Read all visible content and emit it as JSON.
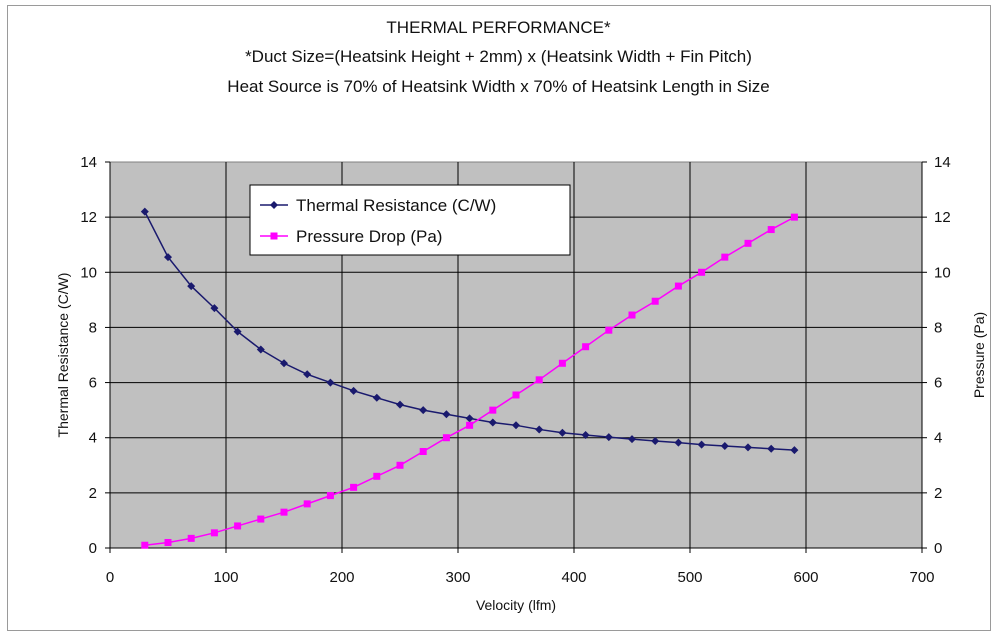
{
  "chart_data": {
    "type": "line",
    "title": "THERMAL PERFORMANCE*",
    "subtitle_lines": [
      "*Duct Size=(Heatsink Height + 2mm) x (Heatsink Width + Fin Pitch)",
      "Heat Source is 70% of Heatsink Width x 70% of Heatsink Length in Size"
    ],
    "xlabel": "Velocity (lfm)",
    "ylabel_left": "Thermal Resistance (C/W)",
    "ylabel_right": "Pressure (Pa)",
    "xlim": [
      0,
      700
    ],
    "ylim_left": [
      0,
      14
    ],
    "ylim_right": [
      0,
      14
    ],
    "x_ticks": [
      "0",
      "100",
      "200",
      "300",
      "400",
      "500",
      "600",
      "700"
    ],
    "y_ticks_left": [
      "0",
      "2",
      "4",
      "6",
      "8",
      "10",
      "12",
      "14"
    ],
    "y_ticks_right": [
      "0",
      "2",
      "4",
      "6",
      "8",
      "10",
      "12",
      "14"
    ],
    "grid": true,
    "legend_position": "top-left",
    "plot_background": "#c0c0c0",
    "x": [
      30,
      50,
      70,
      90,
      110,
      130,
      150,
      170,
      190,
      210,
      230,
      250,
      270,
      290,
      310,
      330,
      350,
      370,
      390,
      410,
      430,
      450,
      470,
      490,
      510,
      530,
      550,
      570,
      590
    ],
    "series": [
      {
        "name": "Thermal Resistance (C/W)",
        "axis": "left",
        "color": "#1a1a6e",
        "marker": "diamond",
        "values": [
          12.2,
          10.55,
          9.5,
          8.7,
          7.85,
          7.2,
          6.7,
          6.3,
          6.0,
          5.7,
          5.45,
          5.2,
          5.0,
          4.85,
          4.7,
          4.55,
          4.45,
          4.3,
          4.18,
          4.1,
          4.02,
          3.95,
          3.88,
          3.82,
          3.75,
          3.7,
          3.65,
          3.6,
          3.55
        ]
      },
      {
        "name": "Pressure Drop (Pa)",
        "axis": "right",
        "color": "#ff00ff",
        "marker": "square",
        "values": [
          0.1,
          0.2,
          0.35,
          0.55,
          0.8,
          1.05,
          1.3,
          1.6,
          1.9,
          2.2,
          2.6,
          3.0,
          3.5,
          4.0,
          4.45,
          5.0,
          5.55,
          6.1,
          6.7,
          7.3,
          7.9,
          8.45,
          8.95,
          9.5,
          10.0,
          10.55,
          11.05,
          11.55,
          12.0
        ]
      }
    ]
  }
}
